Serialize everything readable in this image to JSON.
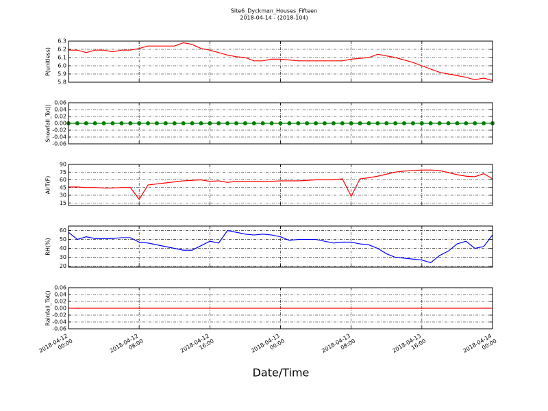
{
  "title": "Site6_Dyckman_Houses_Fifteen",
  "subtitle": "2018-04-14 - (2018-104)",
  "xlabel": "Date/Time",
  "chart_data": [
    {
      "type": "line",
      "y_label": "P(unitless)",
      "color": "#ff0000",
      "ylim": [
        5.8,
        6.3
      ],
      "yticks": [
        5.8,
        5.9,
        {
          "value": 6,
          "label": "6.0"
        },
        6.1,
        6.2,
        6.3
      ],
      "grid": true,
      "x": [
        "2018-04-12 00:00",
        "2018-04-12 01:00",
        "2018-04-12 02:00",
        "2018-04-12 03:00",
        "2018-04-12 04:00",
        "2018-04-12 05:00",
        "2018-04-12 06:00",
        "2018-04-12 07:00",
        "2018-04-12 08:00",
        "2018-04-12 09:00",
        "2018-04-12 10:00",
        "2018-04-12 11:00",
        "2018-04-12 12:00",
        "2018-04-12 13:00",
        "2018-04-12 14:00",
        "2018-04-12 15:00",
        "2018-04-12 16:00",
        "2018-04-12 17:00",
        "2018-04-12 18:00",
        "2018-04-12 19:00",
        "2018-04-12 20:00",
        "2018-04-12 21:00",
        "2018-04-12 22:00",
        "2018-04-12 23:00",
        "2018-04-13 00:00",
        "2018-04-13 01:00",
        "2018-04-13 02:00",
        "2018-04-13 03:00",
        "2018-04-13 04:00",
        "2018-04-13 05:00",
        "2018-04-13 06:00",
        "2018-04-13 07:00",
        "2018-04-13 08:00",
        "2018-04-13 09:00",
        "2018-04-13 10:00",
        "2018-04-13 11:00",
        "2018-04-13 12:00",
        "2018-04-13 13:00",
        "2018-04-13 14:00",
        "2018-04-13 15:00",
        "2018-04-13 16:00",
        "2018-04-13 17:00",
        "2018-04-13 18:00",
        "2018-04-13 19:00",
        "2018-04-13 20:00",
        "2018-04-13 21:00",
        "2018-04-13 22:00",
        "2018-04-13 23:00",
        "2018-04-14 00:00"
      ],
      "values": [
        6.19,
        6.19,
        6.16,
        6.19,
        6.19,
        6.17,
        6.19,
        6.19,
        6.21,
        6.24,
        6.24,
        6.24,
        6.24,
        6.28,
        6.26,
        6.21,
        6.19,
        6.16,
        6.13,
        6.11,
        6.1,
        6.06,
        6.06,
        6.08,
        6.08,
        6.07,
        6.06,
        6.06,
        6.06,
        6.06,
        6.06,
        6.06,
        6.08,
        6.09,
        6.1,
        6.14,
        6.12,
        6.1,
        6.07,
        6.04,
        6.0,
        5.96,
        5.92,
        5.9,
        5.88,
        5.86,
        5.83,
        5.85,
        5.82
      ]
    },
    {
      "type": "line",
      "marker": true,
      "y_label": "Snowfall_Tot()",
      "color": "#008000",
      "ylim": [
        -0.06,
        0.06
      ],
      "yticks": [
        -0.06,
        -0.04,
        -0.02,
        {
          "value": 0,
          "label": "0.00"
        },
        0.02,
        0.04,
        0.06
      ],
      "grid": true,
      "x": [
        "2018-04-12 00:00",
        "2018-04-12 01:00",
        "2018-04-12 02:00",
        "2018-04-12 03:00",
        "2018-04-12 04:00",
        "2018-04-12 05:00",
        "2018-04-12 06:00",
        "2018-04-12 07:00",
        "2018-04-12 08:00",
        "2018-04-12 09:00",
        "2018-04-12 10:00",
        "2018-04-12 11:00",
        "2018-04-12 12:00",
        "2018-04-12 13:00",
        "2018-04-12 14:00",
        "2018-04-12 15:00",
        "2018-04-12 16:00",
        "2018-04-12 17:00",
        "2018-04-12 18:00",
        "2018-04-12 19:00",
        "2018-04-12 20:00",
        "2018-04-12 21:00",
        "2018-04-12 22:00",
        "2018-04-12 23:00",
        "2018-04-13 00:00",
        "2018-04-13 01:00",
        "2018-04-13 02:00",
        "2018-04-13 03:00",
        "2018-04-13 04:00",
        "2018-04-13 05:00",
        "2018-04-13 06:00",
        "2018-04-13 07:00",
        "2018-04-13 08:00",
        "2018-04-13 09:00",
        "2018-04-13 10:00",
        "2018-04-13 11:00",
        "2018-04-13 12:00",
        "2018-04-13 13:00",
        "2018-04-13 14:00",
        "2018-04-13 15:00",
        "2018-04-13 16:00",
        "2018-04-13 17:00",
        "2018-04-13 18:00",
        "2018-04-13 19:00",
        "2018-04-13 20:00",
        "2018-04-13 21:00",
        "2018-04-13 22:00",
        "2018-04-13 23:00",
        "2018-04-14 00:00"
      ],
      "values": [
        0,
        0,
        0,
        0,
        0,
        0,
        0,
        0,
        0,
        0,
        0,
        0,
        0,
        0,
        0,
        0,
        0,
        0,
        0,
        0,
        0,
        0,
        0,
        0,
        0,
        0,
        0,
        0,
        0,
        0,
        0,
        0,
        0,
        0,
        0,
        0,
        0,
        0,
        0,
        0,
        0,
        0,
        0,
        0,
        0,
        0,
        0,
        0,
        0
      ]
    },
    {
      "type": "line",
      "y_label": "AirT(F)",
      "color": "#ff0000",
      "ylim": [
        10,
        90
      ],
      "yticks": [
        15,
        30,
        45,
        60,
        75,
        90
      ],
      "grid": true,
      "x": [
        "2018-04-12 00:00",
        "2018-04-12 01:00",
        "2018-04-12 02:00",
        "2018-04-12 03:00",
        "2018-04-12 04:00",
        "2018-04-12 05:00",
        "2018-04-12 06:00",
        "2018-04-12 07:00",
        "2018-04-12 08:00",
        "2018-04-12 09:00",
        "2018-04-12 10:00",
        "2018-04-12 11:00",
        "2018-04-12 12:00",
        "2018-04-12 13:00",
        "2018-04-12 14:00",
        "2018-04-12 15:00",
        "2018-04-12 16:00",
        "2018-04-12 17:00",
        "2018-04-12 18:00",
        "2018-04-12 19:00",
        "2018-04-12 20:00",
        "2018-04-12 21:00",
        "2018-04-12 22:00",
        "2018-04-12 23:00",
        "2018-04-13 00:00",
        "2018-04-13 01:00",
        "2018-04-13 02:00",
        "2018-04-13 03:00",
        "2018-04-13 04:00",
        "2018-04-13 05:00",
        "2018-04-13 06:00",
        "2018-04-13 07:00",
        "2018-04-13 08:00",
        "2018-04-13 09:00",
        "2018-04-13 10:00",
        "2018-04-13 11:00",
        "2018-04-13 12:00",
        "2018-04-13 13:00",
        "2018-04-13 14:00",
        "2018-04-13 15:00",
        "2018-04-13 16:00",
        "2018-04-13 17:00",
        "2018-04-13 18:00",
        "2018-04-13 19:00",
        "2018-04-13 20:00",
        "2018-04-13 21:00",
        "2018-04-13 22:00",
        "2018-04-13 23:00",
        "2018-04-14 00:00"
      ],
      "values": [
        46,
        46,
        45,
        45,
        44,
        44,
        45,
        45,
        22,
        50,
        52,
        54,
        56,
        58,
        59,
        60,
        57,
        58,
        55,
        57,
        57,
        57,
        57,
        57,
        58,
        58,
        58,
        59,
        60,
        60,
        60,
        62,
        28,
        62,
        64,
        67,
        71,
        75,
        77,
        78,
        79,
        79,
        78,
        74,
        70,
        67,
        66,
        72,
        62
      ]
    },
    {
      "type": "line",
      "y_label": "RH(%)",
      "color": "#0000ff",
      "ylim": [
        19,
        65
      ],
      "yticks": [
        20,
        30,
        40,
        50,
        60
      ],
      "grid": true,
      "x": [
        "2018-04-12 00:00",
        "2018-04-12 01:00",
        "2018-04-12 02:00",
        "2018-04-12 03:00",
        "2018-04-12 04:00",
        "2018-04-12 05:00",
        "2018-04-12 06:00",
        "2018-04-12 07:00",
        "2018-04-12 08:00",
        "2018-04-12 09:00",
        "2018-04-12 10:00",
        "2018-04-12 11:00",
        "2018-04-12 12:00",
        "2018-04-12 13:00",
        "2018-04-12 14:00",
        "2018-04-12 15:00",
        "2018-04-12 16:00",
        "2018-04-12 17:00",
        "2018-04-12 18:00",
        "2018-04-12 19:00",
        "2018-04-12 20:00",
        "2018-04-12 21:00",
        "2018-04-12 22:00",
        "2018-04-12 23:00",
        "2018-04-13 00:00",
        "2018-04-13 01:00",
        "2018-04-13 02:00",
        "2018-04-13 03:00",
        "2018-04-13 04:00",
        "2018-04-13 05:00",
        "2018-04-13 06:00",
        "2018-04-13 07:00",
        "2018-04-13 08:00",
        "2018-04-13 09:00",
        "2018-04-13 10:00",
        "2018-04-13 11:00",
        "2018-04-13 12:00",
        "2018-04-13 13:00",
        "2018-04-13 14:00",
        "2018-04-13 15:00",
        "2018-04-13 16:00",
        "2018-04-13 17:00",
        "2018-04-13 18:00",
        "2018-04-13 19:00",
        "2018-04-13 20:00",
        "2018-04-13 21:00",
        "2018-04-13 22:00",
        "2018-04-13 23:00",
        "2018-04-14 00:00"
      ],
      "values": [
        58,
        50,
        53,
        51,
        51,
        51,
        52,
        52,
        47,
        46,
        44,
        42,
        40,
        38,
        38,
        43,
        48,
        46,
        60,
        58,
        56,
        55,
        56,
        55,
        53,
        49,
        50,
        50,
        50,
        48,
        46,
        47,
        47,
        45,
        44,
        40,
        34,
        30,
        29,
        28,
        27,
        24,
        32,
        37,
        45,
        48,
        40,
        42,
        55
      ]
    },
    {
      "type": "line",
      "y_label": "Rainfall_Tot()",
      "color": "#ff0000",
      "ylim": [
        -0.06,
        0.06
      ],
      "yticks": [
        -0.06,
        -0.04,
        -0.02,
        {
          "value": 0,
          "label": "0.00"
        },
        0.02,
        0.04,
        0.06
      ],
      "grid": true,
      "xlim": [
        "2018-04-12 00:00",
        "2018-04-14 00:00"
      ],
      "xticks": [
        "2018-04-12 00:00",
        "2018-04-12 08:00",
        "2018-04-12 16:00",
        "2018-04-13 00:00",
        "2018-04-13 08:00",
        "2018-04-13 16:00",
        "2018-04-14 00:00"
      ],
      "x": [
        "2018-04-12 00:00",
        "2018-04-12 01:00",
        "2018-04-12 02:00",
        "2018-04-12 03:00",
        "2018-04-12 04:00",
        "2018-04-12 05:00",
        "2018-04-12 06:00",
        "2018-04-12 07:00",
        "2018-04-12 08:00",
        "2018-04-12 09:00",
        "2018-04-12 10:00",
        "2018-04-12 11:00",
        "2018-04-12 12:00",
        "2018-04-12 13:00",
        "2018-04-12 14:00",
        "2018-04-12 15:00",
        "2018-04-12 16:00",
        "2018-04-12 17:00",
        "2018-04-12 18:00",
        "2018-04-12 19:00",
        "2018-04-12 20:00",
        "2018-04-12 21:00",
        "2018-04-12 22:00",
        "2018-04-12 23:00",
        "2018-04-13 00:00",
        "2018-04-13 01:00",
        "2018-04-13 02:00",
        "2018-04-13 03:00",
        "2018-04-13 04:00",
        "2018-04-13 05:00",
        "2018-04-13 06:00",
        "2018-04-13 07:00",
        "2018-04-13 08:00",
        "2018-04-13 09:00",
        "2018-04-13 10:00",
        "2018-04-13 11:00",
        "2018-04-13 12:00",
        "2018-04-13 13:00",
        "2018-04-13 14:00",
        "2018-04-13 15:00",
        "2018-04-13 16:00",
        "2018-04-13 17:00",
        "2018-04-13 18:00",
        "2018-04-13 19:00",
        "2018-04-13 20:00",
        "2018-04-13 21:00",
        "2018-04-13 22:00",
        "2018-04-13 23:00",
        "2018-04-14 00:00"
      ],
      "values": [
        0,
        0,
        0,
        0,
        0,
        0,
        0,
        0,
        0,
        0,
        0,
        0,
        0,
        0,
        0,
        0,
        0,
        0,
        0,
        0,
        0,
        0,
        0,
        0,
        0,
        0,
        0,
        0,
        0,
        0,
        0,
        0,
        0,
        0,
        0,
        0,
        0,
        0,
        0,
        0,
        0,
        0,
        0,
        0,
        0,
        0,
        0,
        0,
        0
      ]
    }
  ]
}
